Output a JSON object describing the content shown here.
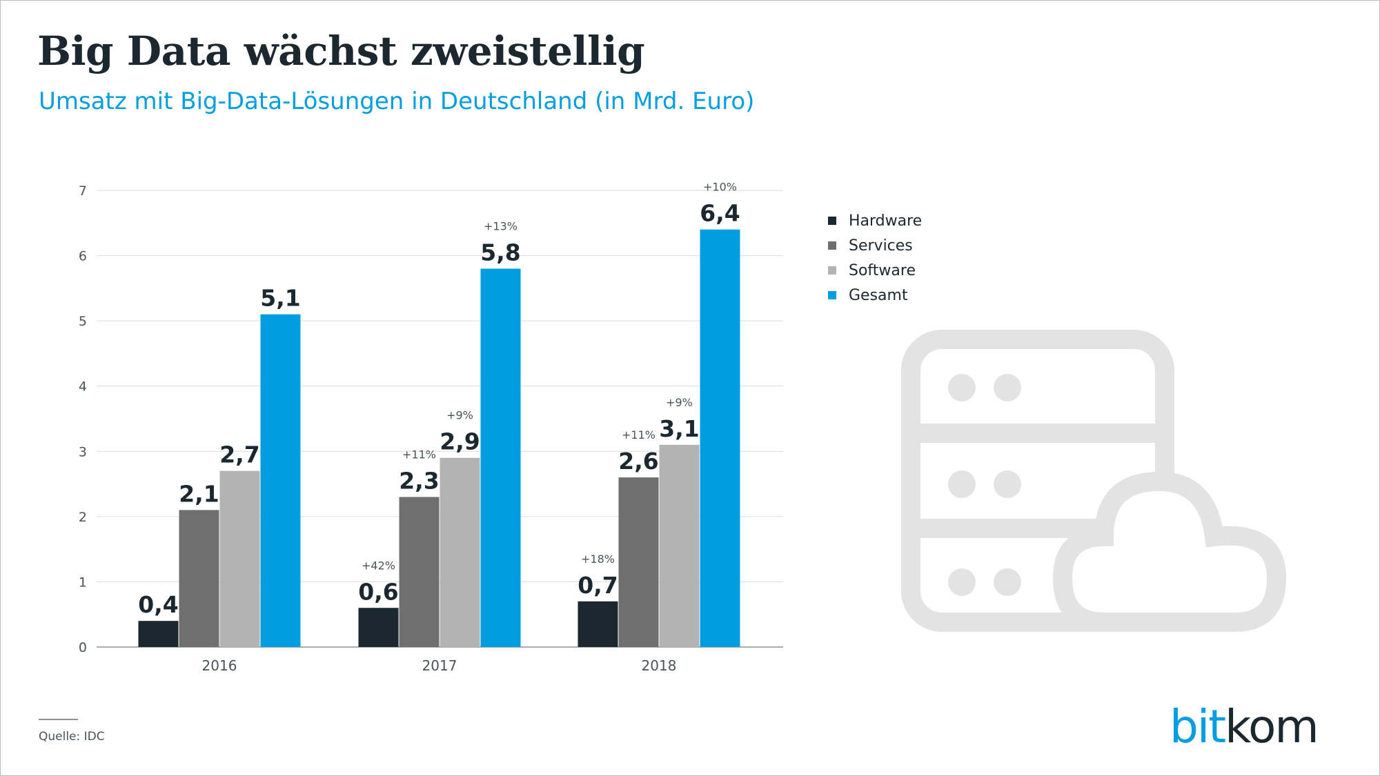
{
  "title": "Big Data wächst zweistellig",
  "subtitle": "Umsatz mit Big-Data-Lösungen in Deutschland (in Mrd. Euro)",
  "source": "Quelle: IDC",
  "logo": {
    "part1": "bit",
    "part2": "kom"
  },
  "decoration": {
    "icon": "server-cloud-icon",
    "color": "#e3e3e3"
  },
  "colors": {
    "Hardware": "#1b2830",
    "Services": "#6f6f6f",
    "Software": "#b3b3b3",
    "Gesamt": "#009ee0"
  },
  "chart_data": {
    "type": "bar",
    "title": "Big Data wächst zweistellig",
    "subtitle": "Umsatz mit Big-Data-Lösungen in Deutschland (in Mrd. Euro)",
    "categories": [
      "2016",
      "2017",
      "2018"
    ],
    "ylim": [
      0,
      7
    ],
    "yticks": [
      "0",
      "1",
      "2",
      "3",
      "4",
      "5",
      "6",
      "7"
    ],
    "grid": true,
    "legend": "right",
    "series": [
      {
        "name": "Hardware",
        "values": [
          0.4,
          0.6,
          0.7
        ],
        "labels": [
          "0,4",
          "0,6",
          "0,7"
        ],
        "growth": [
          "",
          "+42%",
          "+18%"
        ]
      },
      {
        "name": "Services",
        "values": [
          2.1,
          2.3,
          2.6
        ],
        "labels": [
          "2,1",
          "2,3",
          "2,6"
        ],
        "growth": [
          "",
          "+11%",
          "+11%"
        ]
      },
      {
        "name": "Software",
        "values": [
          2.7,
          2.9,
          3.1
        ],
        "labels": [
          "2,7",
          "2,9",
          "3,1"
        ],
        "growth": [
          "",
          "+9%",
          "+9%"
        ]
      },
      {
        "name": "Gesamt",
        "values": [
          5.1,
          5.8,
          6.4
        ],
        "labels": [
          "5,1",
          "5,8",
          "6,4"
        ],
        "growth": [
          "",
          "+13%",
          "+10%"
        ]
      }
    ]
  }
}
